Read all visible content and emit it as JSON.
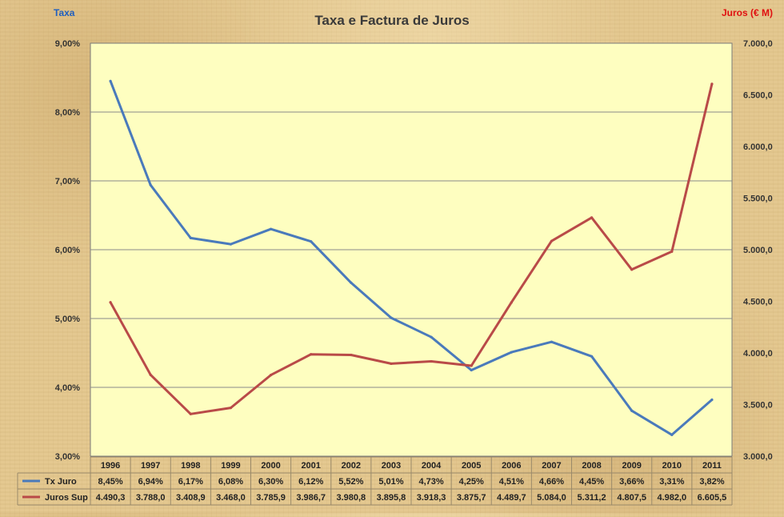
{
  "chart_data": {
    "type": "line",
    "title": "Taxa e Factura de Juros",
    "y_left_label": "Taxa",
    "y_right_label": "Juros (€ M)",
    "categories": [
      "1996",
      "1997",
      "1998",
      "1999",
      "2000",
      "2001",
      "2002",
      "2003",
      "2004",
      "2005",
      "2006",
      "2007",
      "2008",
      "2009",
      "2010",
      "2011"
    ],
    "y_left_range": [
      3.0,
      9.0
    ],
    "y_right_range": [
      3000,
      7000
    ],
    "y_left_ticks": [
      "3,00%",
      "4,00%",
      "5,00%",
      "6,00%",
      "7,00%",
      "8,00%",
      "9,00%"
    ],
    "y_right_ticks": [
      "3.000,0",
      "3.500,0",
      "4.000,0",
      "4.500,0",
      "5.000,0",
      "5.500,0",
      "6.000,0",
      "6.500,0",
      "7.000,0"
    ],
    "grid": true,
    "series": [
      {
        "name": "Tx Juro",
        "axis": "left",
        "color": "#4a7abb",
        "values": [
          8.45,
          6.94,
          6.17,
          6.08,
          6.3,
          6.12,
          5.52,
          5.01,
          4.73,
          4.25,
          4.51,
          4.66,
          4.45,
          3.66,
          3.31,
          3.82
        ],
        "labels": [
          "8,45%",
          "6,94%",
          "6,17%",
          "6,08%",
          "6,30%",
          "6,12%",
          "5,52%",
          "5,01%",
          "4,73%",
          "4,25%",
          "4,51%",
          "4,66%",
          "4,45%",
          "3,66%",
          "3,31%",
          "3,82%"
        ]
      },
      {
        "name": "Juros Sup",
        "axis": "right",
        "color": "#b94a48",
        "values": [
          4490.3,
          3788.0,
          3408.9,
          3468.0,
          3785.9,
          3986.7,
          3980.8,
          3895.8,
          3918.3,
          3875.7,
          4489.7,
          5084.0,
          5311.2,
          4807.5,
          4982.0,
          6605.5
        ],
        "labels": [
          "4.490,3",
          "3.788,0",
          "3.408,9",
          "3.468,0",
          "3.785,9",
          "3.986,7",
          "3.980,8",
          "3.895,8",
          "3.918,3",
          "3.875,7",
          "4.489,7",
          "5.084,0",
          "5.311,2",
          "4.807,5",
          "4.982,0",
          "6.605,5"
        ]
      }
    ]
  },
  "colors": {
    "plot_background": "#fefec0",
    "title_color": "#3a3a3a",
    "left_axis_title_color": "#1f5fbf",
    "right_axis_title_color": "#e01010",
    "grid_color": "#8a8a8a"
  }
}
